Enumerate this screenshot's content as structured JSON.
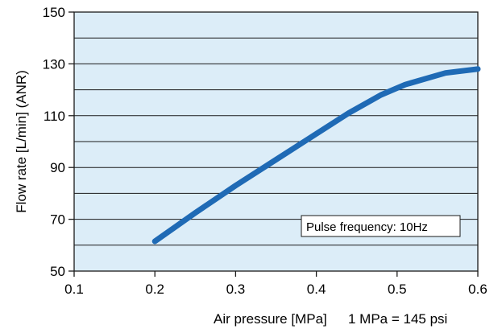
{
  "chart_data": {
    "type": "line",
    "title": "",
    "xlabel": "Air pressure [MPa]",
    "xlabel_note": "1 MPa = 145 psi",
    "ylabel": "Flow rate [L/min] (ANR)",
    "xlim": [
      0.1,
      0.6
    ],
    "ylim": [
      50,
      150
    ],
    "x_ticks": [
      "0.1",
      "0.2",
      "0.3",
      "0.4",
      "0.5",
      "0.6"
    ],
    "y_ticks": [
      "50",
      "70",
      "90",
      "110",
      "130",
      "150"
    ],
    "grid": true,
    "series": [
      {
        "x": [
          0.2,
          0.25,
          0.3,
          0.35,
          0.4,
          0.44,
          0.48,
          0.51,
          0.56,
          0.6
        ],
        "y": [
          61.5,
          72.5,
          83,
          93,
          103,
          111,
          118,
          122,
          126.5,
          128
        ]
      }
    ],
    "annotation": "Pulse frequency: 10Hz",
    "colors": {
      "plot_background": "#dcedf8",
      "line": "#1f6ab5",
      "grid": "#1a1a1a",
      "annotation_box": "#ffffff"
    }
  }
}
